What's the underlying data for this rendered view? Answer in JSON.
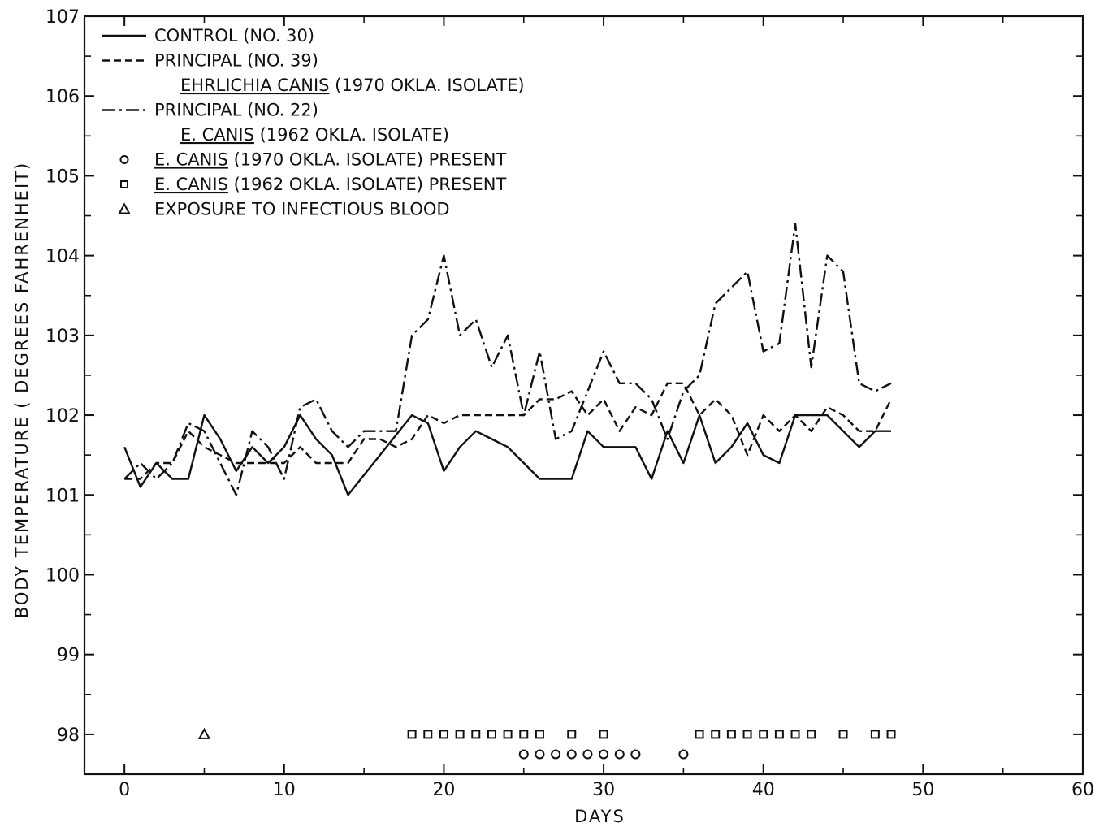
{
  "chart_data": {
    "type": "line",
    "xlabel": "DAYS",
    "ylabel": "BODY TEMPERATURE ( DEGREES FAHRENHEIT)",
    "xlim": [
      -2.5,
      60
    ],
    "ylim": [
      97.5,
      107
    ],
    "x_ticks": [
      0,
      10,
      20,
      30,
      40,
      50,
      60
    ],
    "x_tick_labels": [
      "0",
      "10",
      "20",
      "30",
      "40",
      "50",
      "60"
    ],
    "y_ticks": [
      98,
      99,
      100,
      101,
      102,
      103,
      104,
      105,
      106,
      107
    ],
    "y_tick_labels": [
      "98",
      "99",
      "100",
      "101",
      "102",
      "103",
      "104",
      "105",
      "106",
      "107"
    ],
    "grid": false,
    "legend_position": "top-left",
    "legend": [
      {
        "id": "control",
        "style": "solid",
        "text": "CONTROL (NO. 30)"
      },
      {
        "id": "p39",
        "style": "dashed",
        "text": "PRINCIPAL (NO. 39)",
        "subtext_underlined": "EHRLICHIA CANIS",
        "subtext": " (1970 OKLA. ISOLATE)"
      },
      {
        "id": "p22",
        "style": "dashdot",
        "text": "PRINCIPAL (NO. 22)",
        "subtext_underlined": "E. CANIS",
        "subtext": " (1962 OKLA. ISOLATE)"
      },
      {
        "id": "m1970",
        "marker": "circle",
        "underlined": "E. CANIS",
        "text": " (1970 OKLA. ISOLATE) PRESENT"
      },
      {
        "id": "m1962",
        "marker": "square",
        "underlined": "E. CANIS",
        "text": " (1962 OKLA. ISOLATE) PRESENT"
      },
      {
        "id": "exposure",
        "marker": "triangle",
        "text": "EXPOSURE TO INFECTIOUS BLOOD"
      }
    ],
    "series": [
      {
        "id": "control",
        "style": "solid",
        "x": [
          0,
          1,
          2,
          3,
          4,
          5,
          6,
          7,
          8,
          9,
          10,
          11,
          12,
          13,
          14,
          18,
          19,
          20,
          21,
          22,
          23,
          24,
          25,
          26,
          27,
          28,
          29,
          30,
          31,
          32,
          33,
          34,
          35,
          36,
          37,
          38,
          39,
          40,
          41,
          42,
          43,
          44,
          45,
          46,
          47,
          48
        ],
        "y": [
          101.6,
          101.1,
          101.4,
          101.2,
          101.2,
          102.0,
          101.7,
          101.3,
          101.6,
          101.4,
          101.6,
          102.0,
          101.7,
          101.5,
          101.0,
          102.0,
          101.9,
          101.3,
          101.6,
          101.8,
          101.7,
          101.6,
          101.4,
          101.2,
          101.2,
          101.2,
          101.8,
          101.6,
          101.6,
          101.6,
          101.2,
          101.8,
          101.4,
          102.0,
          101.4,
          101.6,
          101.9,
          101.5,
          101.4,
          102.0,
          102.0,
          102.0,
          101.8,
          101.6,
          101.8,
          101.8
        ]
      },
      {
        "id": "p39",
        "style": "dashed",
        "x": [
          0,
          1,
          2,
          3,
          4,
          5,
          6,
          7,
          8,
          9,
          10,
          11,
          12,
          13,
          14,
          15,
          16,
          17,
          18,
          19,
          20,
          21,
          22,
          23,
          24,
          25,
          26,
          27,
          28,
          29,
          30,
          31,
          32,
          33,
          34,
          35,
          36,
          37,
          38,
          39,
          40,
          41,
          42,
          43,
          44,
          45,
          46,
          47,
          48
        ],
        "y": [
          101.2,
          101.2,
          101.4,
          101.4,
          101.8,
          101.6,
          101.5,
          101.4,
          101.4,
          101.4,
          101.4,
          101.6,
          101.4,
          101.4,
          101.4,
          101.7,
          101.7,
          101.6,
          101.7,
          102.0,
          101.9,
          102.0,
          102.0,
          102.0,
          102.0,
          102.0,
          102.2,
          102.2,
          102.3,
          102.0,
          102.2,
          101.8,
          102.1,
          102.0,
          102.4,
          102.4,
          102.0,
          102.2,
          102.0,
          101.5,
          102.0,
          101.8,
          102.0,
          101.8,
          102.1,
          102.0,
          101.8,
          101.8,
          102.2
        ]
      },
      {
        "id": "p22",
        "style": "dashdot",
        "x": [
          0,
          1,
          2,
          3,
          4,
          5,
          6,
          7,
          8,
          9,
          10,
          11,
          12,
          13,
          14,
          15,
          16,
          17,
          18,
          19,
          20,
          21,
          22,
          23,
          24,
          25,
          26,
          27,
          28,
          29,
          30,
          31,
          32,
          33,
          34,
          35,
          36,
          37,
          38,
          39,
          40,
          41,
          42,
          43,
          44,
          45,
          46,
          47,
          48
        ],
        "y": [
          101.2,
          101.4,
          101.2,
          101.4,
          101.9,
          101.8,
          101.4,
          101.0,
          101.8,
          101.6,
          101.2,
          102.1,
          102.2,
          101.8,
          101.6,
          101.8,
          101.8,
          101.8,
          103.0,
          103.2,
          104.0,
          103.0,
          103.2,
          102.6,
          103.0,
          102.0,
          102.8,
          101.7,
          101.8,
          102.3,
          102.8,
          102.4,
          102.4,
          102.2,
          101.7,
          102.3,
          102.5,
          103.4,
          103.6,
          103.8,
          102.8,
          102.9,
          104.4,
          102.6,
          104.0,
          103.8,
          102.4,
          102.3,
          102.4
        ]
      }
    ],
    "markers_1962_present": {
      "marker": "square",
      "y": 98,
      "x": [
        18,
        19,
        20,
        21,
        22,
        23,
        24,
        25,
        26,
        28,
        30,
        36,
        37,
        38,
        39,
        40,
        41,
        42,
        43,
        45,
        47,
        48
      ]
    },
    "markers_1970_present": {
      "marker": "circle",
      "y": 97.75,
      "x": [
        25,
        26,
        27,
        28,
        29,
        30,
        31,
        32,
        35
      ]
    },
    "exposure": {
      "marker": "triangle",
      "x": [
        5
      ],
      "y": 98
    }
  }
}
